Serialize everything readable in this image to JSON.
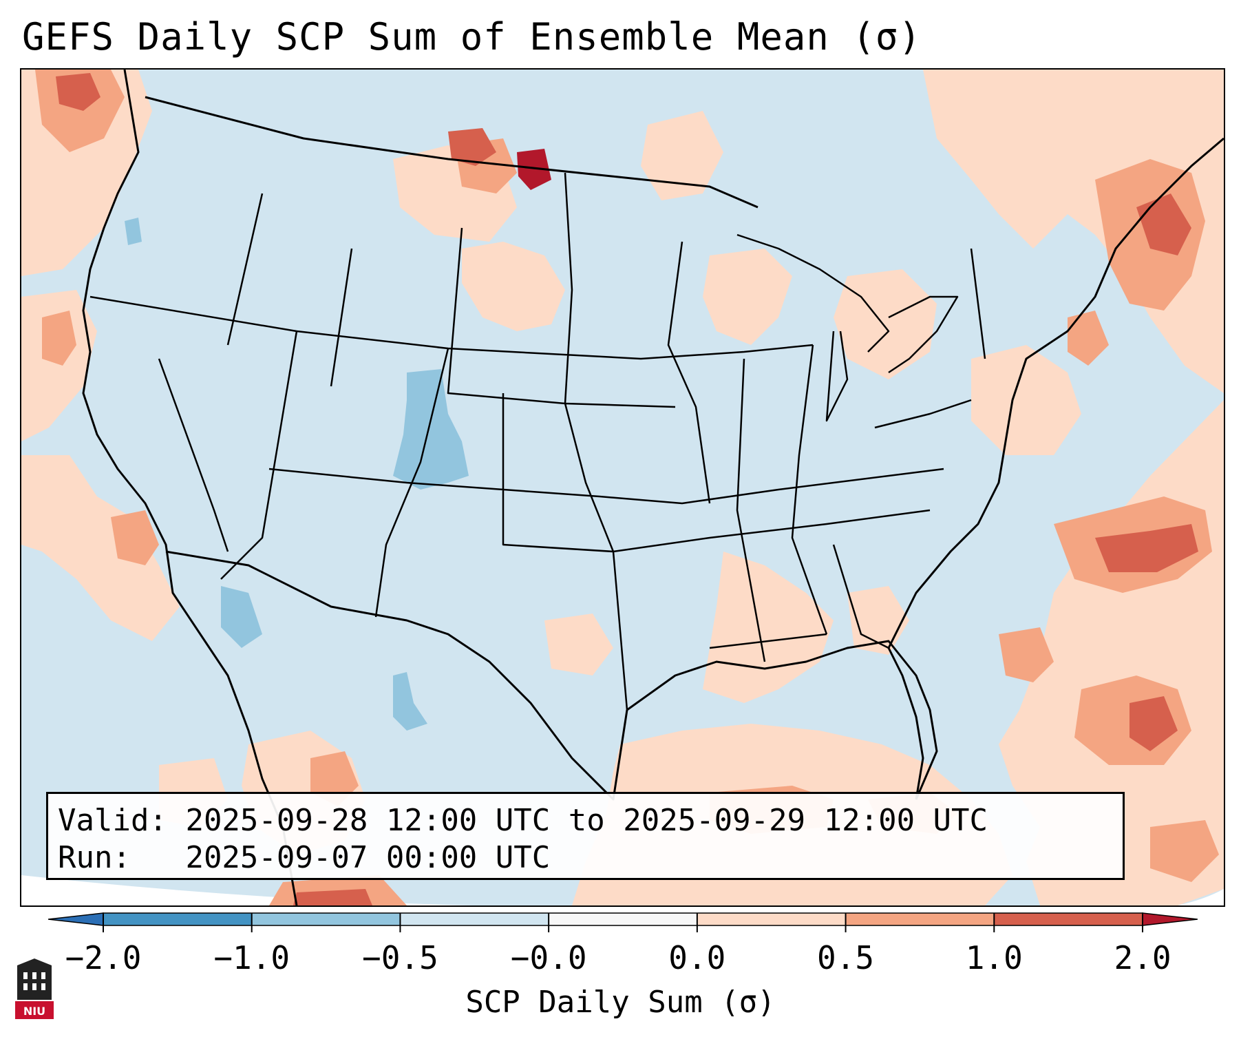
{
  "title": "GEFS Daily SCP Sum of Ensemble Mean (σ)",
  "info": {
    "valid_label": "Valid:",
    "valid_value": "2025-09-28 12:00 UTC to 2025-09-29 12:00 UTC",
    "run_label": "Run:",
    "run_value": "2025-09-07 00:00 UTC"
  },
  "colorbar": {
    "label": "SCP Daily Sum (σ)",
    "ticks": [
      "−2.0",
      "−1.0",
      "−0.5",
      "−0.0",
      "0.0",
      "0.5",
      "1.0",
      "2.0"
    ],
    "bins": [
      {
        "range": "< -2.0",
        "color": "#2b6fb6"
      },
      {
        "range": "-2.0 to -1.0",
        "color": "#4393c3"
      },
      {
        "range": "-1.0 to -0.5",
        "color": "#92c5de"
      },
      {
        "range": "-0.5 to -0.0",
        "color": "#d1e5f0"
      },
      {
        "range": "-0.0 to 0.0",
        "color": "#f7f7f7"
      },
      {
        "range": "0.0 to 0.5",
        "color": "#fddbc7"
      },
      {
        "range": "0.5 to 1.0",
        "color": "#f4a582"
      },
      {
        "range": "1.0 to 2.0",
        "color": "#d6604d"
      },
      {
        "range": "> 2.0",
        "color": "#b2182b"
      }
    ]
  },
  "logo": {
    "text": "NIU",
    "color": "#c8102e"
  }
}
